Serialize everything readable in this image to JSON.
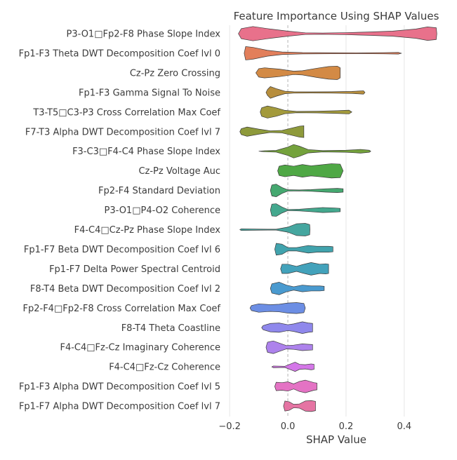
{
  "chart_data": {
    "type": "violin",
    "title": "Feature Importance Using SHAP Values",
    "xlabel": "SHAP Value",
    "ylabel": "",
    "xlim": [
      -0.21,
      0.55
    ],
    "xticks": [
      -0.2,
      0.0,
      0.2,
      0.4
    ],
    "xtick_labels": [
      "−0.2",
      "0.0",
      "0.2",
      "0.4"
    ],
    "grid": "vertical",
    "zero_line": true,
    "features": [
      {
        "label": "P3-O1□Fp2-F8 Phase Slope Index",
        "color": "#e8718b",
        "profile": [
          [
            -0.17,
            0.0
          ],
          [
            -0.16,
            0.6
          ],
          [
            -0.12,
            0.85
          ],
          [
            -0.06,
            0.55
          ],
          [
            0.0,
            0.3
          ],
          [
            0.06,
            0.1
          ],
          [
            0.12,
            0.08
          ],
          [
            0.2,
            0.12
          ],
          [
            0.28,
            0.2
          ],
          [
            0.36,
            0.3
          ],
          [
            0.44,
            0.55
          ],
          [
            0.48,
            0.8
          ],
          [
            0.51,
            0.7
          ],
          [
            0.512,
            0.0
          ]
        ]
      },
      {
        "label": "Fp1-F3 Theta DWT Decomposition Coef lvl 0",
        "color": "#e27f5b",
        "profile": [
          [
            -0.15,
            0.0
          ],
          [
            -0.145,
            0.8
          ],
          [
            -0.12,
            0.7
          ],
          [
            -0.07,
            0.35
          ],
          [
            -0.02,
            0.15
          ],
          [
            0.05,
            0.08
          ],
          [
            0.15,
            0.06
          ],
          [
            0.25,
            0.05
          ],
          [
            0.33,
            0.07
          ],
          [
            0.38,
            0.1
          ],
          [
            0.39,
            0.0
          ]
        ]
      },
      {
        "label": "Cz-Pz Zero Crossing",
        "color": "#d38a45",
        "profile": [
          [
            -0.11,
            0.0
          ],
          [
            -0.1,
            0.5
          ],
          [
            -0.08,
            0.6
          ],
          [
            -0.03,
            0.45
          ],
          [
            0.02,
            0.2
          ],
          [
            0.05,
            0.25
          ],
          [
            0.1,
            0.55
          ],
          [
            0.14,
            0.75
          ],
          [
            0.17,
            0.8
          ],
          [
            0.18,
            0.6
          ],
          [
            0.18,
            0.0
          ]
        ]
      },
      {
        "label": "Fp1-F3 Gamma Signal To Noise",
        "color": "#b78e3d",
        "profile": [
          [
            -0.075,
            0.0
          ],
          [
            -0.07,
            0.35
          ],
          [
            -0.06,
            0.7
          ],
          [
            -0.04,
            0.45
          ],
          [
            -0.01,
            0.15
          ],
          [
            0.02,
            0.08
          ],
          [
            0.08,
            0.07
          ],
          [
            0.15,
            0.08
          ],
          [
            0.22,
            0.12
          ],
          [
            0.26,
            0.2
          ],
          [
            0.265,
            0.0
          ]
        ]
      },
      {
        "label": "T3-T5□C3-P3 Cross Correlation Max Coef",
        "color": "#a39a3c",
        "profile": [
          [
            -0.095,
            0.0
          ],
          [
            -0.09,
            0.5
          ],
          [
            -0.07,
            0.72
          ],
          [
            -0.04,
            0.5
          ],
          [
            -0.01,
            0.2
          ],
          [
            0.03,
            0.08
          ],
          [
            0.1,
            0.1
          ],
          [
            0.17,
            0.16
          ],
          [
            0.21,
            0.22
          ],
          [
            0.22,
            0.0
          ]
        ]
      },
      {
        "label": "F7-T3 Alpha DWT Decomposition Coef lvl 7",
        "color": "#8e9a3b",
        "profile": [
          [
            -0.165,
            0.0
          ],
          [
            -0.16,
            0.35
          ],
          [
            -0.14,
            0.55
          ],
          [
            -0.1,
            0.3
          ],
          [
            -0.06,
            0.1
          ],
          [
            -0.02,
            0.15
          ],
          [
            0.01,
            0.4
          ],
          [
            0.04,
            0.65
          ],
          [
            0.055,
            0.7
          ],
          [
            0.055,
            0.0
          ]
        ]
      },
      {
        "label": "F3-C3□F4-C4 Phase Slope Index",
        "color": "#74a23c",
        "profile": [
          [
            -0.1,
            0.0
          ],
          [
            -0.08,
            0.06
          ],
          [
            -0.04,
            0.1
          ],
          [
            0.0,
            0.5
          ],
          [
            0.02,
            0.8
          ],
          [
            0.04,
            0.6
          ],
          [
            0.07,
            0.2
          ],
          [
            0.12,
            0.08
          ],
          [
            0.2,
            0.12
          ],
          [
            0.25,
            0.22
          ],
          [
            0.28,
            0.12
          ],
          [
            0.285,
            0.0
          ]
        ]
      },
      {
        "label": "Cz-Pz Voltage Auc",
        "color": "#4fa845",
        "profile": [
          [
            -0.035,
            0.0
          ],
          [
            -0.03,
            0.55
          ],
          [
            -0.01,
            0.7
          ],
          [
            0.02,
            0.55
          ],
          [
            0.05,
            0.75
          ],
          [
            0.08,
            0.6
          ],
          [
            0.11,
            0.7
          ],
          [
            0.15,
            0.85
          ],
          [
            0.18,
            0.8
          ],
          [
            0.19,
            0.0
          ]
        ]
      },
      {
        "label": "Fp2-F4 Standard Deviation",
        "color": "#45a870",
        "profile": [
          [
            -0.06,
            0.0
          ],
          [
            -0.055,
            0.65
          ],
          [
            -0.04,
            0.75
          ],
          [
            -0.02,
            0.35
          ],
          [
            0.0,
            0.08
          ],
          [
            0.04,
            0.06
          ],
          [
            0.08,
            0.1
          ],
          [
            0.13,
            0.2
          ],
          [
            0.17,
            0.25
          ],
          [
            0.19,
            0.2
          ],
          [
            0.19,
            0.0
          ]
        ]
      },
      {
        "label": "P3-O1□P4-O2 Coherence",
        "color": "#44a88e",
        "profile": [
          [
            -0.06,
            0.0
          ],
          [
            -0.055,
            0.7
          ],
          [
            -0.04,
            0.75
          ],
          [
            -0.02,
            0.35
          ],
          [
            0.0,
            0.06
          ],
          [
            0.04,
            0.1
          ],
          [
            0.08,
            0.2
          ],
          [
            0.12,
            0.3
          ],
          [
            0.16,
            0.25
          ],
          [
            0.18,
            0.2
          ],
          [
            0.18,
            0.0
          ]
        ]
      },
      {
        "label": "F4-C4□Cz-Pz Phase Slope Index",
        "color": "#45a69f",
        "profile": [
          [
            -0.165,
            0.0
          ],
          [
            -0.16,
            0.1
          ],
          [
            -0.1,
            0.06
          ],
          [
            -0.04,
            0.05
          ],
          [
            0.0,
            0.3
          ],
          [
            0.03,
            0.7
          ],
          [
            0.06,
            0.75
          ],
          [
            0.075,
            0.6
          ],
          [
            0.076,
            0.0
          ]
        ]
      },
      {
        "label": "Fp1-F7 Beta DWT Decomposition Coef lvl 6",
        "color": "#41a3ad",
        "profile": [
          [
            -0.045,
            0.0
          ],
          [
            -0.04,
            0.7
          ],
          [
            -0.02,
            0.6
          ],
          [
            0.0,
            0.2
          ],
          [
            0.03,
            0.2
          ],
          [
            0.07,
            0.45
          ],
          [
            0.1,
            0.35
          ],
          [
            0.14,
            0.35
          ],
          [
            0.155,
            0.3
          ],
          [
            0.155,
            0.0
          ]
        ]
      },
      {
        "label": "Fp1-F7 Delta Power Spectral Centroid",
        "color": "#43a2bb",
        "profile": [
          [
            -0.025,
            0.0
          ],
          [
            -0.02,
            0.55
          ],
          [
            0.0,
            0.55
          ],
          [
            0.03,
            0.3
          ],
          [
            0.05,
            0.5
          ],
          [
            0.08,
            0.75
          ],
          [
            0.11,
            0.55
          ],
          [
            0.13,
            0.6
          ],
          [
            0.14,
            0.55
          ],
          [
            0.14,
            0.0
          ]
        ]
      },
      {
        "label": "F8-T4 Beta DWT Decomposition Coef lvl 2",
        "color": "#4a9acf",
        "profile": [
          [
            -0.06,
            0.0
          ],
          [
            -0.055,
            0.55
          ],
          [
            -0.03,
            0.75
          ],
          [
            -0.005,
            0.4
          ],
          [
            0.02,
            0.2
          ],
          [
            0.05,
            0.4
          ],
          [
            0.08,
            0.3
          ],
          [
            0.11,
            0.3
          ],
          [
            0.125,
            0.25
          ],
          [
            0.125,
            0.0
          ]
        ]
      },
      {
        "label": "Fp2-F4□Fp2-F8 Cross Correlation Max Coef",
        "color": "#6c8ee4",
        "profile": [
          [
            -0.13,
            0.0
          ],
          [
            -0.125,
            0.3
          ],
          [
            -0.1,
            0.5
          ],
          [
            -0.06,
            0.4
          ],
          [
            -0.03,
            0.45
          ],
          [
            0.0,
            0.6
          ],
          [
            0.03,
            0.65
          ],
          [
            0.055,
            0.55
          ],
          [
            0.06,
            0.0
          ]
        ]
      },
      {
        "label": "F8-T4 Theta Coastline",
        "color": "#8f88ec",
        "profile": [
          [
            -0.09,
            0.0
          ],
          [
            -0.085,
            0.25
          ],
          [
            -0.06,
            0.5
          ],
          [
            -0.03,
            0.55
          ],
          [
            0.0,
            0.35
          ],
          [
            0.02,
            0.45
          ],
          [
            0.05,
            0.7
          ],
          [
            0.07,
            0.55
          ],
          [
            0.085,
            0.5
          ],
          [
            0.085,
            0.0
          ]
        ]
      },
      {
        "label": "F4-C4□Fz-Cz Imaginary Coherence",
        "color": "#ad82ec",
        "profile": [
          [
            -0.075,
            0.0
          ],
          [
            -0.07,
            0.6
          ],
          [
            -0.05,
            0.75
          ],
          [
            -0.03,
            0.5
          ],
          [
            -0.005,
            0.2
          ],
          [
            0.02,
            0.25
          ],
          [
            0.05,
            0.4
          ],
          [
            0.07,
            0.35
          ],
          [
            0.085,
            0.32
          ],
          [
            0.085,
            0.0
          ]
        ]
      },
      {
        "label": "F4-C4□Fz-Cz Coherence",
        "color": "#d477e8",
        "profile": [
          [
            -0.055,
            0.0
          ],
          [
            -0.05,
            0.1
          ],
          [
            -0.01,
            0.07
          ],
          [
            0.01,
            0.35
          ],
          [
            0.025,
            0.55
          ],
          [
            0.04,
            0.3
          ],
          [
            0.06,
            0.25
          ],
          [
            0.08,
            0.35
          ],
          [
            0.09,
            0.3
          ],
          [
            0.09,
            0.0
          ]
        ]
      },
      {
        "label": "Fp1-F3 Alpha DWT Decomposition Coef lvl 5",
        "color": "#e473c4",
        "profile": [
          [
            -0.045,
            0.0
          ],
          [
            -0.04,
            0.5
          ],
          [
            -0.02,
            0.45
          ],
          [
            0.0,
            0.55
          ],
          [
            0.02,
            0.3
          ],
          [
            0.04,
            0.6
          ],
          [
            0.06,
            0.75
          ],
          [
            0.09,
            0.45
          ],
          [
            0.1,
            0.4
          ],
          [
            0.1,
            0.0
          ]
        ]
      },
      {
        "label": "Fp1-F7 Alpha DWT Decomposition Coef lvl 7",
        "color": "#e574a3",
        "profile": [
          [
            -0.015,
            0.0
          ],
          [
            -0.01,
            0.6
          ],
          [
            0.005,
            0.5
          ],
          [
            0.02,
            0.2
          ],
          [
            0.04,
            0.25
          ],
          [
            0.06,
            0.6
          ],
          [
            0.08,
            0.65
          ],
          [
            0.095,
            0.55
          ],
          [
            0.095,
            0.0
          ]
        ]
      }
    ]
  }
}
